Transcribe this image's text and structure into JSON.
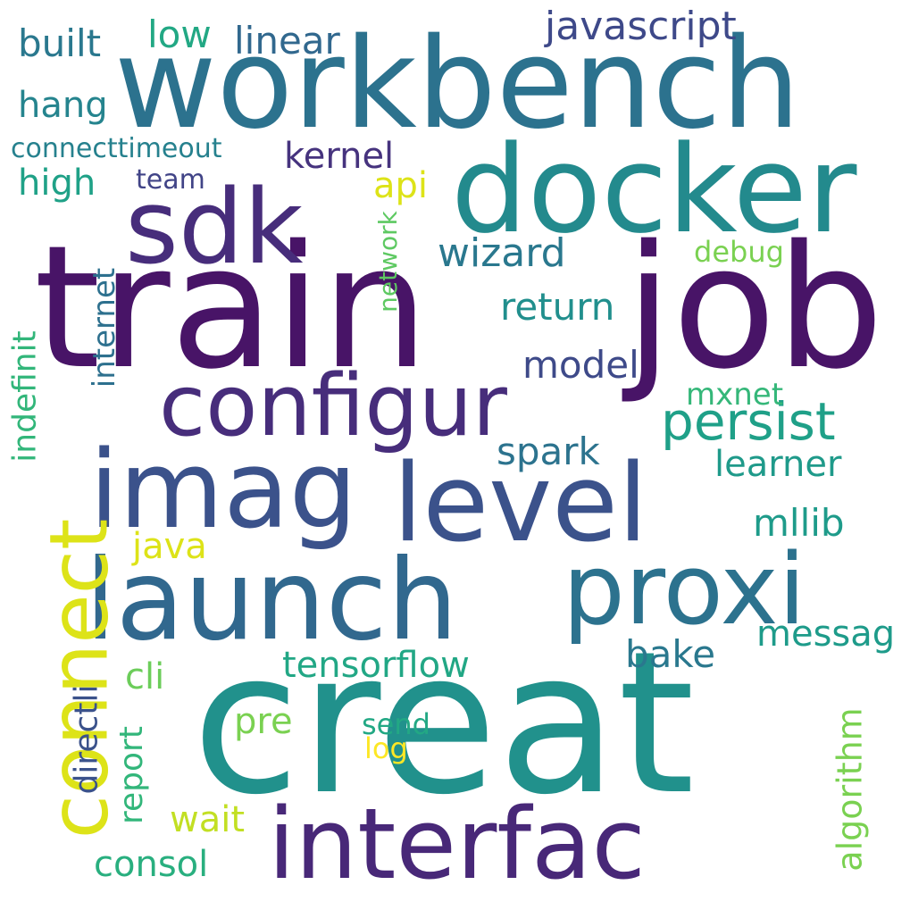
{
  "words": {
    "train": {
      "text": "train",
      "color": "#481467"
    },
    "job": {
      "text": "job",
      "color": "#481467"
    },
    "creat": {
      "text": "creat",
      "color": "#21918c"
    },
    "workbench": {
      "text": "workbench",
      "color": "#2c728e"
    },
    "docker": {
      "text": "docker",
      "color": "#238a8d"
    },
    "sdk": {
      "text": "sdk",
      "color": "#472d7b"
    },
    "imag": {
      "text": "imag",
      "color": "#3b528b"
    },
    "level": {
      "text": "level",
      "color": "#3b528b"
    },
    "launch": {
      "text": "launch",
      "color": "#31688e"
    },
    "proxi": {
      "text": "proxi",
      "color": "#2c728e"
    },
    "configur": {
      "text": "configur",
      "color": "#472d7b"
    },
    "interfac": {
      "text": "interfac",
      "color": "#482878"
    },
    "persist": {
      "text": "persist",
      "color": "#1fa088"
    },
    "connect": {
      "text": "connect",
      "color": "#dde318"
    },
    "javascript": {
      "text": "javascript",
      "color": "#3e4989"
    },
    "built": {
      "text": "built",
      "color": "#2a788e"
    },
    "low": {
      "text": "low",
      "color": "#22a884"
    },
    "linear": {
      "text": "linear",
      "color": "#31688e"
    },
    "hang": {
      "text": "hang",
      "color": "#25848e"
    },
    "connecttimeout": {
      "text": "connecttimeout",
      "color": "#26818e"
    },
    "kernel": {
      "text": "kernel",
      "color": "#46337e"
    },
    "high": {
      "text": "high",
      "color": "#1fa187"
    },
    "team": {
      "text": "team",
      "color": "#414487"
    },
    "api": {
      "text": "api",
      "color": "#dde318"
    },
    "wizard": {
      "text": "wizard",
      "color": "#2a788e"
    },
    "debug": {
      "text": "debug",
      "color": "#7ad151"
    },
    "return": {
      "text": "return",
      "color": "#218f8d"
    },
    "model": {
      "text": "model",
      "color": "#3e4a89"
    },
    "mxnet": {
      "text": "mxnet",
      "color": "#35b779"
    },
    "spark": {
      "text": "spark",
      "color": "#2c738e"
    },
    "learner": {
      "text": "learner",
      "color": "#1f9a8a"
    },
    "mllib": {
      "text": "mllib",
      "color": "#1e9b8a"
    },
    "java": {
      "text": "java",
      "color": "#dde318"
    },
    "messag": {
      "text": "messag",
      "color": "#1e9b8a"
    },
    "bake": {
      "text": "bake",
      "color": "#2a788e"
    },
    "tensorflow": {
      "text": "tensorflow",
      "color": "#22a785"
    },
    "cli": {
      "text": "cli",
      "color": "#6ccd5a"
    },
    "pre": {
      "text": "pre",
      "color": "#7ad151"
    },
    "send": {
      "text": "send",
      "color": "#22a884"
    },
    "log": {
      "text": "log",
      "color": "#fde725"
    },
    "wait": {
      "text": "wait",
      "color": "#c2df23"
    },
    "consol": {
      "text": "consol",
      "color": "#29af7f"
    },
    "algorithm": {
      "text": "algorithm",
      "color": "#7ad151"
    },
    "report": {
      "text": "report",
      "color": "#32b67a"
    },
    "directli": {
      "text": "directli",
      "color": "#3b528b"
    },
    "internet": {
      "text": "internet",
      "color": "#2d708e"
    },
    "indefinit": {
      "text": "indefinit",
      "color": "#32b67a"
    },
    "network": {
      "text": "network",
      "color": "#5ec962"
    }
  }
}
